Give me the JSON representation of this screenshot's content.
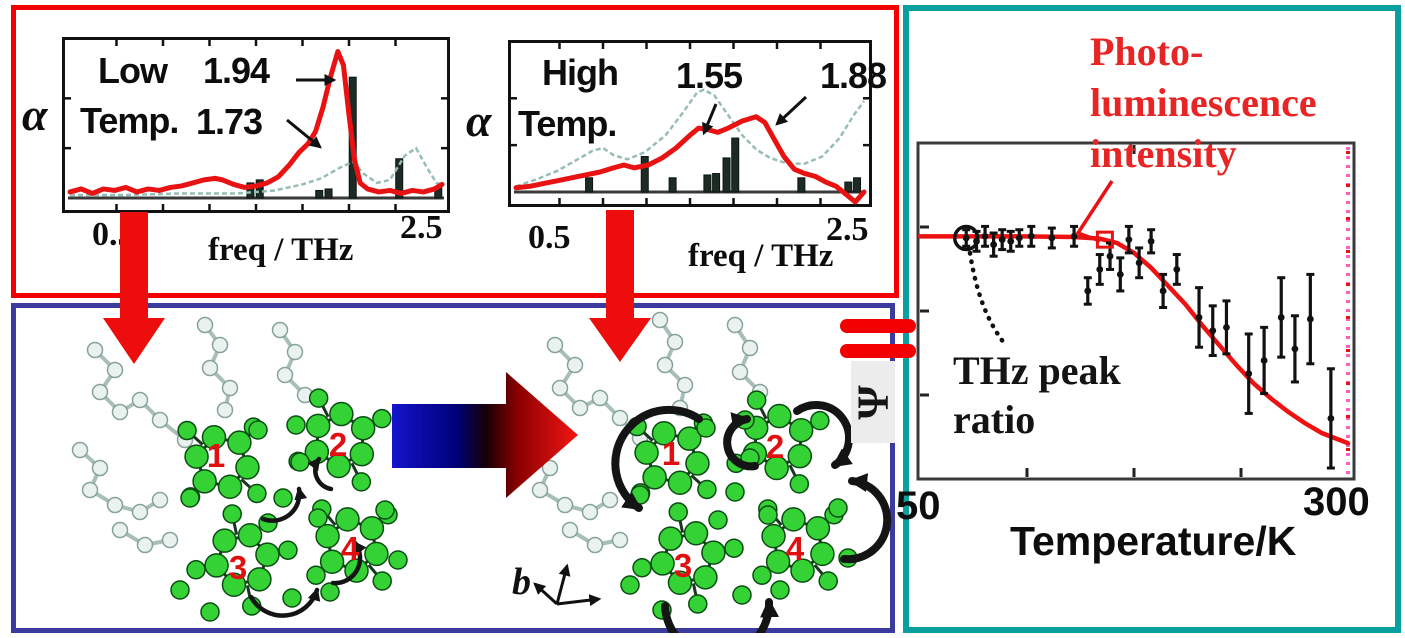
{
  "panels": {
    "red_border": "#f50000",
    "blue_border": "#3b3b9d",
    "teal_border": "#0aa0a0"
  },
  "colors": {
    "spectrum_curve": "#e81212",
    "calc_curve": "#96bdb6",
    "mode_bars": "#1c2b24",
    "fit_curve": "#ee1111",
    "pink_edge": "#ff5ec2",
    "molecule_green": "#35d235",
    "molecule_pale": "#eaf2ef",
    "annotation_red": "#e82525",
    "number_red": "#e01010"
  },
  "spectra": {
    "alpha_label": "α",
    "xlabel": "freq / THz",
    "x_min_label": "0.5",
    "x_max_label": "2.5",
    "left": {
      "title_line1": "Low",
      "title_line2": "Temp.",
      "peak1_label": "1.94",
      "peak2_label": "1.73"
    },
    "right": {
      "title_line1": "High",
      "title_line2": "Temp.",
      "peak1_label": "1.55",
      "peak2_label": "1.88"
    }
  },
  "molecule_labels": {
    "left": [
      "1",
      "2",
      "3",
      "4"
    ],
    "right": [
      "1",
      "2",
      "3",
      "4"
    ]
  },
  "b_axis_label": "b",
  "psi_symbol": "Ψ",
  "right_chart": {
    "annotation_red": [
      "Photo-",
      "luminescence",
      "intensity"
    ],
    "annotation_black": [
      "THz peak",
      "ratio"
    ],
    "x_min_label": "50",
    "x_max_label": "300",
    "xlabel": "Temperature/K"
  },
  "chart_data": [
    {
      "id": "thz_spectrum_low_temp",
      "type": "line",
      "title": "Low Temp.",
      "xlabel": "freq / THz",
      "ylabel": "α",
      "xlim": [
        0.5,
        2.5
      ],
      "annotations": [
        {
          "text": "1.94",
          "freq": 1.94
        },
        {
          "text": "1.73",
          "freq": 1.73
        }
      ],
      "series": [
        {
          "name": "THz absorption (red)",
          "x": [
            0.5,
            0.56,
            0.62,
            0.68,
            0.74,
            0.8,
            0.86,
            0.92,
            0.98,
            1.04,
            1.1,
            1.16,
            1.22,
            1.28,
            1.32,
            1.38,
            1.44,
            1.5,
            1.56,
            1.62,
            1.68,
            1.73,
            1.78,
            1.82,
            1.86,
            1.9,
            1.94,
            1.97,
            2.0,
            2.03,
            2.06,
            2.1,
            2.16,
            2.22,
            2.28,
            2.34,
            2.4,
            2.46,
            2.5
          ],
          "y": [
            0.04,
            0.06,
            0.03,
            0.06,
            0.05,
            0.07,
            0.04,
            0.06,
            0.05,
            0.07,
            0.08,
            0.1,
            0.12,
            0.13,
            0.12,
            0.09,
            0.07,
            0.08,
            0.1,
            0.14,
            0.22,
            0.3,
            0.36,
            0.44,
            0.6,
            0.8,
            0.97,
            0.88,
            0.55,
            0.25,
            0.1,
            0.06,
            0.04,
            0.05,
            0.03,
            0.05,
            0.04,
            0.06,
            0.09
          ]
        },
        {
          "name": "calculated spectrum (thin dashed)",
          "x": [
            0.5,
            0.8,
            1.1,
            1.4,
            1.6,
            1.75,
            1.85,
            1.95,
            2.02,
            2.08,
            2.15,
            2.22,
            2.3,
            2.36,
            2.42,
            2.47,
            2.5
          ],
          "y": [
            0.02,
            0.02,
            0.03,
            0.03,
            0.05,
            0.09,
            0.13,
            0.2,
            0.24,
            0.16,
            0.1,
            0.12,
            0.28,
            0.33,
            0.2,
            0.1,
            0.09
          ]
        }
      ],
      "bars": {
        "name": "calculated modes",
        "x": [
          1.47,
          1.52,
          1.84,
          1.89,
          2.02,
          2.27,
          2.48
        ],
        "height": [
          0.1,
          0.12,
          0.05,
          0.06,
          0.8,
          0.26,
          0.07
        ]
      }
    },
    {
      "id": "thz_spectrum_high_temp",
      "type": "line",
      "title": "High Temp.",
      "xlabel": "freq / THz",
      "ylabel": "α",
      "xlim": [
        0.5,
        2.5
      ],
      "annotations": [
        {
          "text": "1.55",
          "freq": 1.55
        },
        {
          "text": "1.88",
          "freq": 1.88
        }
      ],
      "series": [
        {
          "name": "THz absorption (red)",
          "x": [
            0.5,
            0.58,
            0.66,
            0.74,
            0.82,
            0.9,
            0.98,
            1.06,
            1.12,
            1.18,
            1.26,
            1.34,
            1.42,
            1.5,
            1.55,
            1.6,
            1.66,
            1.72,
            1.8,
            1.88,
            1.93,
            1.98,
            2.04,
            2.1,
            2.16,
            2.22,
            2.28,
            2.34,
            2.4,
            2.45,
            2.5
          ],
          "y": [
            0.03,
            0.04,
            0.06,
            0.08,
            0.1,
            0.12,
            0.14,
            0.17,
            0.19,
            0.17,
            0.19,
            0.24,
            0.31,
            0.4,
            0.45,
            0.44,
            0.42,
            0.45,
            0.5,
            0.53,
            0.49,
            0.38,
            0.25,
            0.16,
            0.13,
            0.11,
            0.07,
            0.04,
            -0.02,
            -0.07,
            0.0
          ]
        },
        {
          "name": "calculated spectrum (thin dashed)",
          "x": [
            0.5,
            0.62,
            0.74,
            0.84,
            0.94,
            1.0,
            1.06,
            1.14,
            1.24,
            1.36,
            1.46,
            1.54,
            1.58,
            1.64,
            1.72,
            1.8,
            1.88,
            1.96,
            2.06,
            2.16,
            2.26,
            2.36,
            2.44,
            2.5
          ],
          "y": [
            0.04,
            0.09,
            0.15,
            0.22,
            0.29,
            0.31,
            0.26,
            0.23,
            0.28,
            0.4,
            0.56,
            0.7,
            0.72,
            0.68,
            0.54,
            0.4,
            0.3,
            0.24,
            0.2,
            0.2,
            0.25,
            0.38,
            0.54,
            0.64
          ]
        }
      ],
      "bars": {
        "name": "calculated modes",
        "x": [
          0.92,
          1.24,
          1.4,
          1.6,
          1.65,
          1.71,
          1.76,
          2.14,
          2.41,
          2.46
        ],
        "height": [
          0.1,
          0.25,
          0.1,
          0.12,
          0.13,
          0.24,
          0.38,
          0.1,
          0.07,
          0.1
        ]
      }
    },
    {
      "id": "temperature_dependence",
      "type": "scatter",
      "xlabel": "Temperature/K",
      "xlim": [
        50,
        300
      ],
      "ylim": [
        0,
        1
      ],
      "curve": {
        "name": "Photo-luminescence intensity (red line)",
        "x": [
          50,
          80,
          110,
          140,
          155,
          165,
          175,
          185,
          195,
          205,
          215,
          225,
          235,
          245,
          255,
          265,
          275,
          285,
          295,
          300
        ],
        "y": [
          0.715,
          0.715,
          0.715,
          0.713,
          0.708,
          0.695,
          0.665,
          0.62,
          0.565,
          0.51,
          0.445,
          0.385,
          0.325,
          0.27,
          0.225,
          0.185,
          0.15,
          0.12,
          0.1,
          0.09
        ]
      },
      "points": {
        "name": "THz peak ratio (black points)",
        "x": [
          77,
          83,
          88,
          93,
          98,
          103,
          108,
          115,
          127,
          140,
          148,
          155,
          161,
          167,
          172,
          178,
          185,
          192,
          200,
          213,
          221,
          229,
          242,
          251,
          261,
          269,
          278,
          290
        ],
        "y": [
          0.71,
          0.7,
          0.715,
          0.69,
          0.705,
          0.7,
          0.71,
          0.715,
          0.71,
          0.715,
          0.55,
          0.615,
          0.655,
          0.6,
          0.705,
          0.635,
          0.7,
          0.55,
          0.615,
          0.47,
          0.43,
          0.44,
          0.3,
          0.34,
          0.47,
          0.375,
          0.465,
          0.165
        ],
        "yerr": [
          0.025,
          0.03,
          0.03,
          0.035,
          0.03,
          0.03,
          0.025,
          0.03,
          0.03,
          0.03,
          0.04,
          0.045,
          0.04,
          0.05,
          0.04,
          0.045,
          0.035,
          0.05,
          0.045,
          0.09,
          0.075,
          0.08,
          0.12,
          0.1,
          0.12,
          0.1,
          0.135,
          0.15
        ]
      },
      "highlight_circle": {
        "x": 77,
        "y": 0.71
      },
      "highlight_square": {
        "x": 158,
        "y": 0.705
      }
    }
  ]
}
